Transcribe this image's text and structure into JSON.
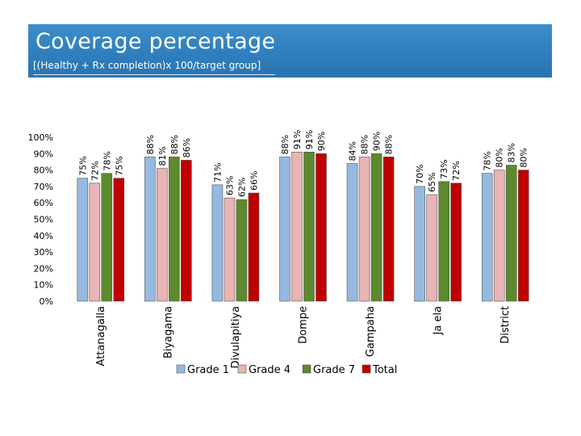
{
  "header": {
    "title": "Coverage percentage",
    "subtitle": "[(Healthy + Rx completion)x 100/target group]"
  },
  "colors": {
    "header_bg": "#2f7fbf",
    "Grade 1": "#96b9e0",
    "Grade 4": "#e8b4b4",
    "Grade 7": "#5c8a2c",
    "Total": "#c00000"
  },
  "chart_data": {
    "type": "bar",
    "title": "",
    "xlabel": "",
    "ylabel": "",
    "ylim": [
      0,
      100
    ],
    "yticks": [
      "0%",
      "10%",
      "20%",
      "30%",
      "40%",
      "50%",
      "60%",
      "70%",
      "80%",
      "90%",
      "100%"
    ],
    "categories": [
      "Attanagalla",
      "Biyagama",
      "Divulapitiya",
      "Dompe",
      "Gampaha",
      "Ja ela",
      "District"
    ],
    "series": [
      {
        "name": "Grade 1",
        "values": [
          75,
          88,
          71,
          88,
          84,
          70,
          78
        ]
      },
      {
        "name": "Grade 4",
        "values": [
          72,
          81,
          63,
          91,
          88,
          65,
          80
        ]
      },
      {
        "name": "Grade 7",
        "values": [
          78,
          88,
          62,
          91,
          90,
          73,
          83
        ]
      },
      {
        "name": "Total",
        "values": [
          75,
          86,
          66,
          90,
          88,
          72,
          80
        ]
      }
    ],
    "data_label_suffix": "%",
    "grid": false,
    "legend_position": "bottom"
  }
}
